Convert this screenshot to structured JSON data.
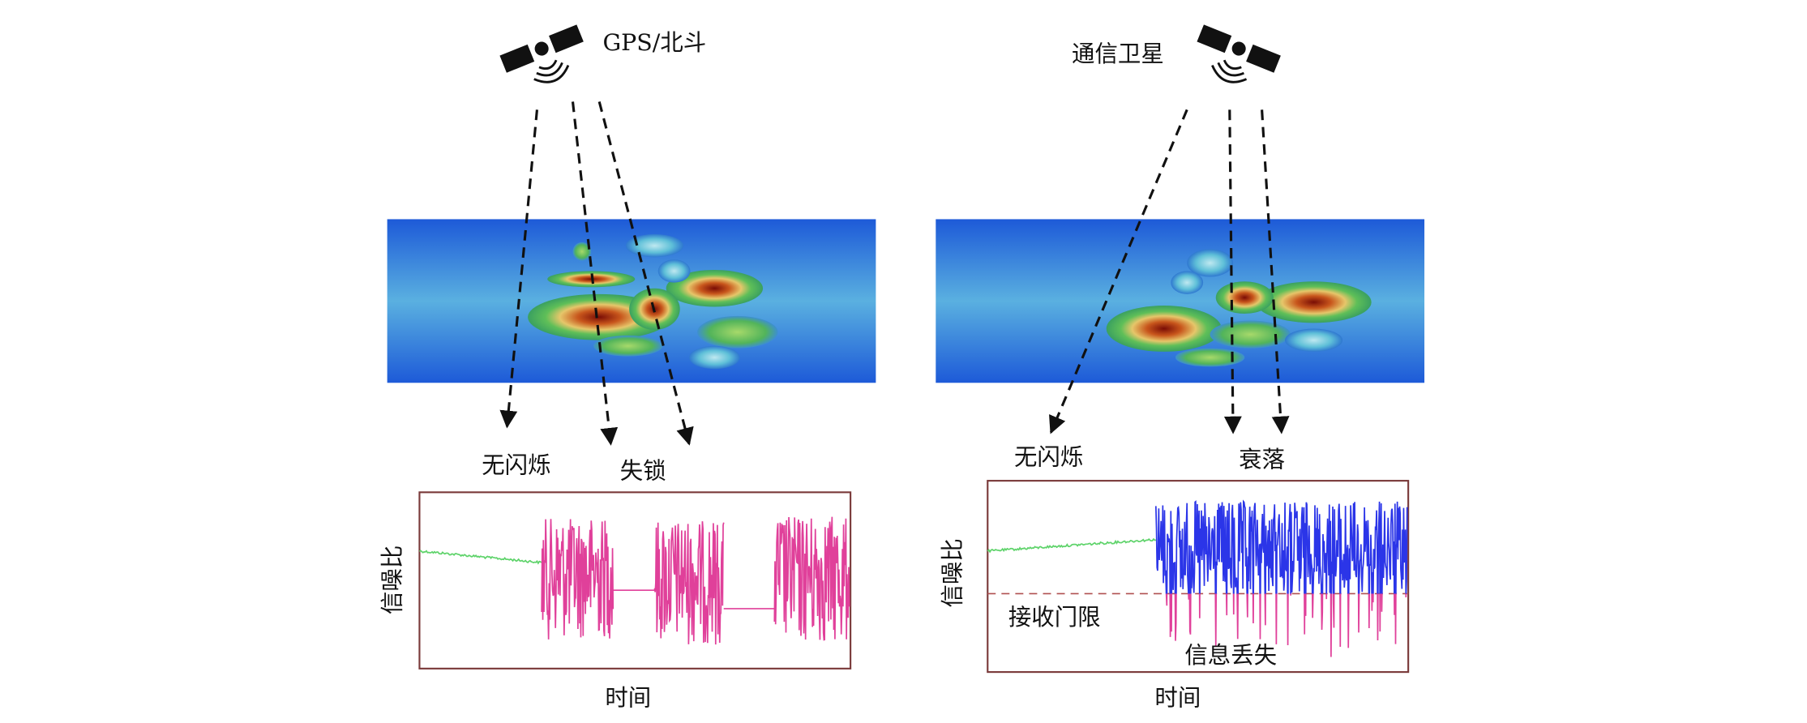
{
  "left": {
    "satellite_label": "GPS/北斗",
    "labels": [
      "无闪烁",
      "失锁"
    ],
    "plot": {
      "y_label": "信噪比",
      "x_label": "时间"
    }
  },
  "right": {
    "satellite_label": "通信卫星",
    "labels": [
      "无闪烁",
      "衰落"
    ],
    "plot": {
      "y_label": "信噪比",
      "x_label": "时间",
      "threshold_label": "接收门限",
      "loss_label": "信息丢失"
    }
  }
}
